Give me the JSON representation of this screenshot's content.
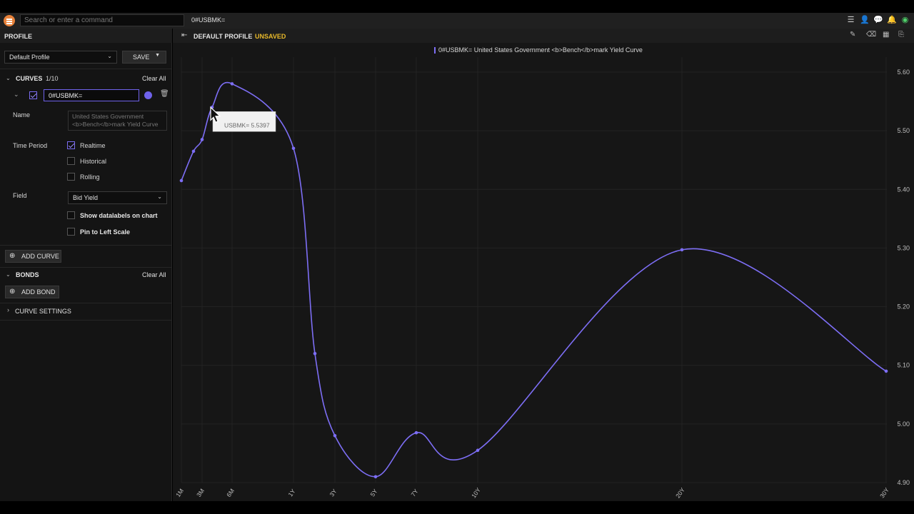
{
  "topbar": {
    "search_placeholder": "Search or enter a command",
    "ric": "0#USBMK="
  },
  "panel": {
    "profile_header": "PROFILE",
    "profile_select": "Default Profile",
    "save_label": "SAVE",
    "curves_header": "CURVES",
    "curves_count": "1/10",
    "clear_all": "Clear All",
    "curve_input_value": "0#USBMK=",
    "curve_color": "#6f62ea",
    "name_label": "Name",
    "name_value_line1": "United States Government",
    "name_value_line2": "<b>Bench</b>mark Yield Curve",
    "time_period_label": "Time Period",
    "options": {
      "realtime": "Realtime",
      "historical": "Historical",
      "rolling": "Rolling"
    },
    "realtime_checked": true,
    "historical_checked": false,
    "rolling_checked": false,
    "field_label": "Field",
    "field_value": "Bid Yield",
    "show_datalabels": "Show datalabels on chart",
    "pin_left": "Pin to Left Scale",
    "add_curve": "ADD CURVE",
    "bonds_header": "BONDS",
    "bonds_clear_all": "Clear All",
    "add_bond": "ADD BOND",
    "curve_settings": "CURVE SETTINGS"
  },
  "chart_header": {
    "profile": "DEFAULT PROFILE",
    "status": "UNSAVED",
    "status_color": "#e8b92a"
  },
  "chart_data": {
    "type": "line",
    "legend": "0#USBMK= United States Government <b>Bench</b>mark Yield Curve",
    "legend_placement": "top-center",
    "series": [
      {
        "name": "0#USBMK=",
        "color": "#7d6ef5",
        "points": [
          {
            "t": "1M",
            "x": 0.083,
            "y": 5.415
          },
          {
            "t": "2M",
            "x": 0.167,
            "y": 5.465
          },
          {
            "t": "3M",
            "x": 0.25,
            "y": 5.485
          },
          {
            "t": "4M",
            "x": 0.333,
            "y": 5.54
          },
          {
            "t": "6M",
            "x": 0.5,
            "y": 5.58
          },
          {
            "t": "1Y",
            "x": 1,
            "y": 5.47
          },
          {
            "t": "2Y",
            "x": 2,
            "y": 5.12
          },
          {
            "t": "3Y",
            "x": 3,
            "y": 4.98
          },
          {
            "t": "5Y",
            "x": 5,
            "y": 4.91
          },
          {
            "t": "7Y",
            "x": 7,
            "y": 4.985
          },
          {
            "t": "10Y",
            "x": 10,
            "y": 4.955
          },
          {
            "t": "20Y",
            "x": 20,
            "y": 5.297
          },
          {
            "t": "30Y",
            "x": 30,
            "y": 5.09
          }
        ]
      }
    ],
    "x_ticks": [
      "1M",
      "3M",
      "6M",
      "1Y",
      "3Y",
      "5Y",
      "7Y",
      "10Y",
      "20Y",
      "30Y"
    ],
    "y_ticks": [
      "5.60",
      "5.50",
      "5.40",
      "5.30",
      "5.20",
      "5.10",
      "5.00",
      "4.90"
    ],
    "ylim": [
      4.9,
      5.6
    ],
    "grid": true
  },
  "tooltip": {
    "text": "USBMK=  5.5397"
  }
}
